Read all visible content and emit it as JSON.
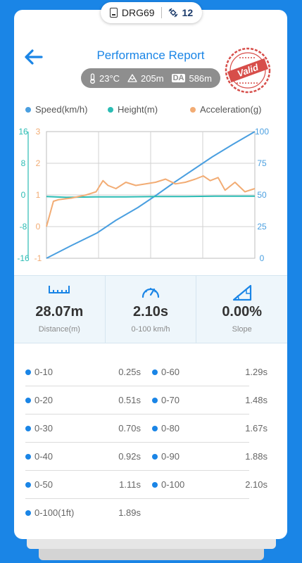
{
  "device": {
    "name": "DRG69",
    "satellites": "12"
  },
  "header": {
    "title": "Performance Report",
    "stamp_text": "Valid"
  },
  "conditions": {
    "temperature": "23°C",
    "altitude": "205m",
    "da_label": "DA",
    "density_altitude": "586m"
  },
  "colors": {
    "speed": "#4a9fe0",
    "height": "#2bbcb4",
    "acceleration": "#f2ac74",
    "accent": "#1a85e6"
  },
  "chart_data": {
    "type": "line",
    "legend": [
      "Speed(km/h)",
      "Height(m)",
      "Acceleration(g)"
    ],
    "legend_position": "top",
    "grid": true,
    "y_left_outer": {
      "ticks": [
        "16",
        "8",
        "0",
        "-8",
        "-16"
      ],
      "range": [
        -16,
        16
      ],
      "series": "Height(m)"
    },
    "y_left_inner": {
      "ticks": [
        "3",
        "2",
        "1",
        "0",
        "-1"
      ],
      "range": [
        -1,
        3
      ],
      "series": "Acceleration(g)"
    },
    "y_right": {
      "ticks": [
        "100",
        "75",
        "50",
        "25",
        "0"
      ],
      "range": [
        0,
        100
      ],
      "series": "Speed(km/h)"
    },
    "x_range": [
      0,
      2.1
    ],
    "series": [
      {
        "name": "Speed(km/h)",
        "axis": "y_right",
        "x": [
          0,
          0.25,
          0.51,
          0.7,
          0.92,
          1.11,
          1.29,
          1.48,
          1.67,
          1.88,
          2.1
        ],
        "y": [
          0,
          10,
          20,
          30,
          40,
          50,
          60,
          70,
          80,
          90,
          100
        ]
      },
      {
        "name": "Height(m)",
        "axis": "y_left_outer",
        "x": [
          0,
          0.2,
          0.5,
          0.8,
          1.1,
          1.4,
          1.7,
          2.0,
          2.1
        ],
        "y": [
          -0.4,
          -0.6,
          -0.5,
          -0.5,
          -0.4,
          -0.4,
          -0.3,
          -0.3,
          -0.3
        ]
      },
      {
        "name": "Acceleration(g)",
        "axis": "y_left_inner",
        "x": [
          0,
          0.07,
          0.12,
          0.25,
          0.4,
          0.5,
          0.57,
          0.62,
          0.7,
          0.8,
          0.9,
          1.0,
          1.1,
          1.2,
          1.3,
          1.4,
          1.5,
          1.58,
          1.65,
          1.73,
          1.8,
          1.9,
          2.0,
          2.1
        ],
        "y": [
          0.0,
          0.8,
          0.85,
          0.9,
          1.0,
          1.1,
          1.45,
          1.3,
          1.2,
          1.4,
          1.3,
          1.35,
          1.4,
          1.5,
          1.35,
          1.4,
          1.5,
          1.6,
          1.45,
          1.55,
          1.15,
          1.4,
          1.1,
          1.2
        ]
      }
    ]
  },
  "stats": [
    {
      "icon": "ruler-icon",
      "value": "28.07m",
      "label": "Distance(m)"
    },
    {
      "icon": "speedometer-icon",
      "value": "2.10s",
      "label": "0-100 km/h"
    },
    {
      "icon": "slope-icon",
      "value": "0.00%",
      "label": "Slope"
    }
  ],
  "splits": [
    {
      "label": "0-10",
      "time": "0.25s"
    },
    {
      "label": "0-60",
      "time": "1.29s"
    },
    {
      "label": "0-20",
      "time": "0.51s"
    },
    {
      "label": "0-70",
      "time": "1.48s"
    },
    {
      "label": "0-30",
      "time": "0.70s"
    },
    {
      "label": "0-80",
      "time": "1.67s"
    },
    {
      "label": "0-40",
      "time": "0.92s"
    },
    {
      "label": "0-90",
      "time": "1.88s"
    },
    {
      "label": "0-50",
      "time": "1.11s"
    },
    {
      "label": "0-100",
      "time": "2.10s"
    },
    {
      "label": "0-100(1ft)",
      "time": "1.89s"
    }
  ]
}
